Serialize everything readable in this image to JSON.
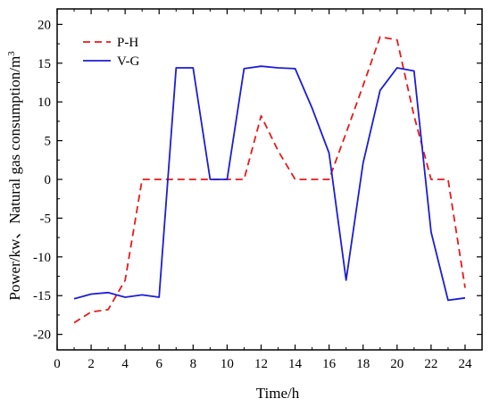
{
  "chart_data": {
    "type": "line",
    "title": "",
    "xlabel": "Time/h",
    "ylabel": "Power/kw、Natural gas consumption/m",
    "ylabel_superscript": "3",
    "xlim": [
      0,
      25
    ],
    "ylim": [
      -22,
      22
    ],
    "xticks": [
      0,
      2,
      4,
      6,
      8,
      10,
      12,
      14,
      16,
      18,
      20,
      22,
      24
    ],
    "yticks": [
      -20,
      -15,
      -10,
      -5,
      0,
      5,
      10,
      15,
      20
    ],
    "grid": false,
    "legend_position": "top-left",
    "x": [
      1,
      2,
      3,
      4,
      5,
      6,
      7,
      8,
      9,
      10,
      11,
      12,
      13,
      14,
      15,
      16,
      17,
      18,
      19,
      20,
      21,
      22,
      23,
      24
    ],
    "series": [
      {
        "name": "P-H",
        "color": "#e8191b",
        "dash": "dashed",
        "values": [
          -18.5,
          -17.1,
          -16.8,
          -13.0,
          0,
          0,
          0,
          0,
          0,
          0,
          0,
          8.2,
          3.7,
          0,
          0,
          0,
          6.0,
          12.1,
          18.4,
          18.0,
          8.2,
          0,
          0,
          -14.0
        ]
      },
      {
        "name": "V-G",
        "color": "#1d1dd6",
        "dash": "solid",
        "values": [
          -15.4,
          -14.8,
          -14.6,
          -15.2,
          -14.9,
          -15.2,
          14.4,
          14.4,
          0,
          0,
          14.3,
          14.6,
          14.4,
          14.3,
          9.2,
          3.4,
          -13.0,
          2.1,
          11.5,
          14.4,
          14.0,
          -6.8,
          -15.6,
          -15.3
        ]
      }
    ]
  }
}
